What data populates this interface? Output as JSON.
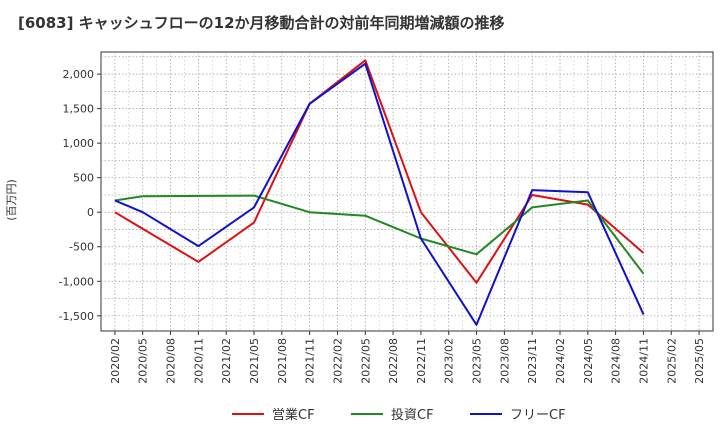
{
  "title": "[6083]  キャッシュフローの12か月移動合計の対前年同期増減額の推移",
  "chart_data": {
    "type": "line",
    "title": "[6083]  キャッシュフローの12か月移動合計の対前年同期増減額の推移",
    "ylabel": "(百万円)",
    "xlabel": "",
    "categories": [
      "2020/02",
      "2020/05",
      "2020/08",
      "2020/11",
      "2021/02",
      "2021/05",
      "2021/08",
      "2021/11",
      "2022/02",
      "2022/05",
      "2022/08",
      "2022/11",
      "2023/02",
      "2023/05",
      "2023/08",
      "2023/11",
      "2024/02",
      "2024/05",
      "2024/08",
      "2024/11",
      "2025/02",
      "2025/05"
    ],
    "y_ticks": [
      2000,
      1500,
      1000,
      500,
      0,
      -500,
      -1000,
      -1500
    ],
    "y_tick_labels": [
      "2,000",
      "1,500",
      "1,000",
      "500",
      "0",
      "-500",
      "-1,000",
      "-1,500"
    ],
    "ylim": [
      -1720,
      2320
    ],
    "grid": true,
    "legend_position": "bottom",
    "series": [
      {
        "name": "営業CF",
        "color": "#dd1111",
        "values": [
          0,
          null,
          null,
          -720,
          null,
          -150,
          null,
          1570,
          null,
          2200,
          null,
          0,
          null,
          -1020,
          null,
          250,
          null,
          110,
          null,
          -590,
          null,
          null
        ]
      },
      {
        "name": "投資CF",
        "color": "#228822",
        "values": [
          170,
          230,
          null,
          null,
          null,
          240,
          null,
          0,
          null,
          -50,
          null,
          -380,
          null,
          -610,
          null,
          70,
          null,
          170,
          null,
          -890,
          null,
          null
        ]
      },
      {
        "name": "フリーCF",
        "color": "#1111cc",
        "values": [
          170,
          0,
          null,
          -490,
          null,
          70,
          null,
          1570,
          null,
          2150,
          null,
          -380,
          null,
          -1630,
          null,
          320,
          null,
          290,
          null,
          -1480,
          null,
          null
        ]
      }
    ]
  }
}
